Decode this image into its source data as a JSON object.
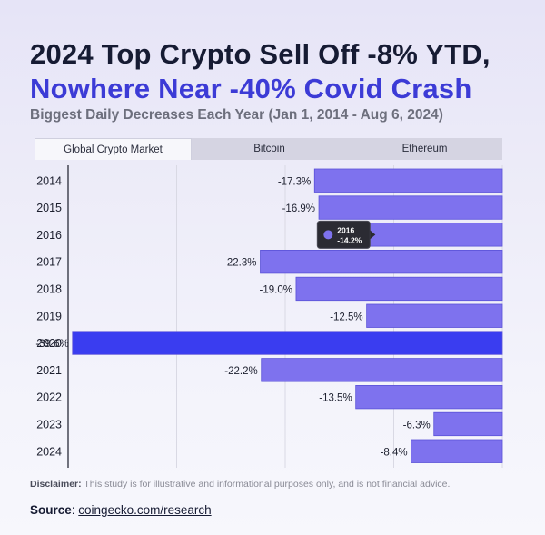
{
  "header": {
    "title_line1": "2024 Top Crypto Sell Off -8% YTD,",
    "title_line2": "Nowhere Near -40% Covid Crash",
    "subtitle": "Biggest Daily Decreases Each Year (Jan 1, 2014 - Aug 6, 2024)"
  },
  "tabs": [
    {
      "label": "Global Crypto Market",
      "active": true
    },
    {
      "label": "Bitcoin",
      "active": false
    },
    {
      "label": "Ethereum",
      "active": false
    }
  ],
  "chart_data": {
    "type": "bar",
    "orientation": "horizontal",
    "categories": [
      "2014",
      "2015",
      "2016",
      "2017",
      "2018",
      "2019",
      "2020",
      "2021",
      "2022",
      "2023",
      "2024"
    ],
    "values": [
      -17.3,
      -16.9,
      -14.2,
      -22.3,
      -19.0,
      -12.5,
      -39.6,
      -22.2,
      -13.5,
      -6.3,
      -8.4
    ],
    "value_labels": [
      "-17.3%",
      "-16.9%",
      "",
      "-22.3%",
      "-19.0%",
      "-12.5%",
      "-39.6%",
      "-22.2%",
      "-13.5%",
      "-6.3%",
      "-8.4%"
    ],
    "xlim": [
      -40,
      0
    ],
    "highlight_category": "2020",
    "colors": {
      "bar": "#7e72ee",
      "highlight": "#3a3df0",
      "bar_border": "#5a52d8"
    },
    "tooltip": {
      "category": "2016",
      "value_label": "-14.2%"
    },
    "grid": true
  },
  "footer": {
    "disclaimer_label": "Disclaimer:",
    "disclaimer_text": " This study is for illustrative and informational purposes only, and is not financial advice.",
    "source_label": "Source",
    "source_sep": ": ",
    "source_link": "coingecko.com/research"
  }
}
